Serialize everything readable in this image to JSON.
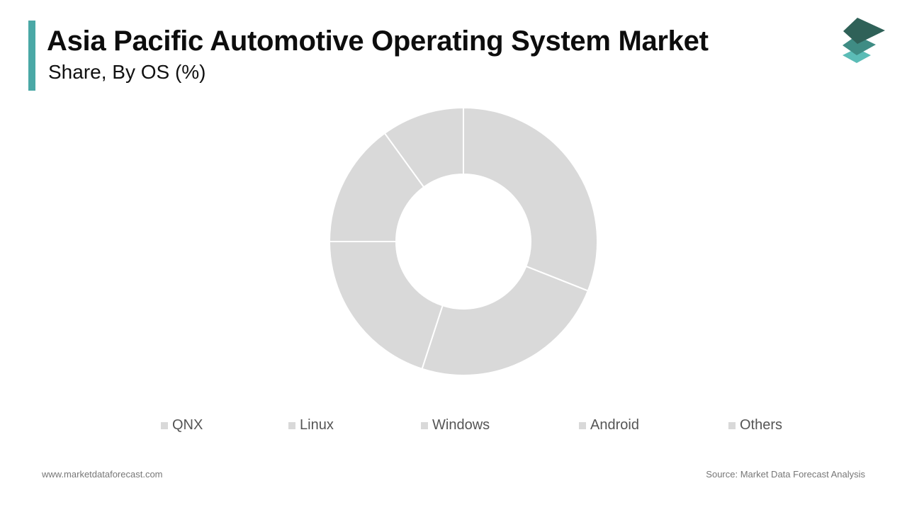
{
  "header": {
    "title": "Asia Pacific Automotive Operating System Market",
    "subtitle": "Share, By OS (%)"
  },
  "colors": {
    "accent": "#4aa8a6",
    "slice_fill": "#d9d9d9",
    "slice_stroke": "#ffffff",
    "logo_top": "#2f6158",
    "logo_mid": "#3f8c84",
    "logo_bottom": "#5bbcb6"
  },
  "chart_data": {
    "type": "pie",
    "variant": "donut",
    "title": "Asia Pacific Automotive Operating System Market",
    "subtitle": "Share, By OS (%)",
    "categories": [
      "QNX",
      "Linux",
      "Windows",
      "Android",
      "Others"
    ],
    "values": [
      31,
      24,
      20,
      15,
      10
    ],
    "unit": "%",
    "legend": "bottom",
    "data_labels": false
  },
  "footer": {
    "website": "www.marketdataforecast.com",
    "source": "Source: Market Data Forecast Analysis"
  }
}
